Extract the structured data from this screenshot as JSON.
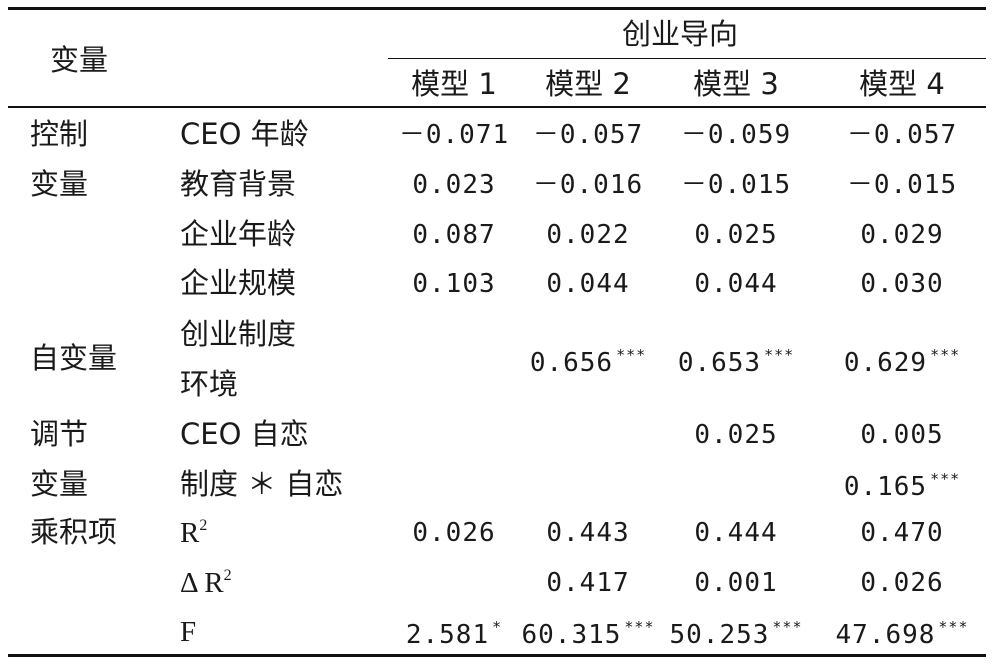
{
  "header": {
    "variable": "变量",
    "group": "创业导向",
    "models": [
      "模型 1",
      "模型 2",
      "模型 3",
      "模型 4"
    ]
  },
  "groups": {
    "control_1": "控制",
    "control_2": "变量",
    "independent": "自变量",
    "moderator_1": "调节",
    "moderator_2": "变量",
    "interaction": "乘积项"
  },
  "rows": [
    {
      "label": "CEO 年龄",
      "values": [
        "－0.071",
        "－0.057",
        "－0.059",
        "－0.057"
      ],
      "stars": [
        "",
        "",
        "",
        ""
      ]
    },
    {
      "label": "教育背景",
      "values": [
        "0.023",
        "－0.016",
        "－0.015",
        "－0.015"
      ],
      "stars": [
        "",
        "",
        "",
        ""
      ]
    },
    {
      "label": "企业年龄",
      "values": [
        "0.087",
        "0.022",
        "0.025",
        "0.029"
      ],
      "stars": [
        "",
        "",
        "",
        ""
      ]
    },
    {
      "label": "企业规模",
      "values": [
        "0.103",
        "0.044",
        "0.044",
        "0.030"
      ],
      "stars": [
        "",
        "",
        "",
        ""
      ]
    },
    {
      "label": "创业制度",
      "label_line2": "环境",
      "values": [
        "",
        "0.656",
        "0.653",
        "0.629"
      ],
      "stars": [
        "",
        "***",
        "***",
        "***"
      ]
    },
    {
      "label": "CEO 自恋",
      "values": [
        "",
        "",
        "0.025",
        "0.005"
      ],
      "stars": [
        "",
        "",
        "",
        ""
      ]
    },
    {
      "label": "制度 ＊ 自恋",
      "values": [
        "",
        "",
        "",
        "0.165"
      ],
      "stars": [
        "",
        "",
        "",
        "***"
      ]
    },
    {
      "label": "R",
      "label_sup": "2",
      "values": [
        "0.026",
        "0.443",
        "0.444",
        "0.470"
      ],
      "stars": [
        "",
        "",
        "",
        ""
      ]
    },
    {
      "label": "Δ R",
      "label_sup": "2",
      "values": [
        "",
        "0.417",
        "0.001",
        "0.026"
      ],
      "stars": [
        "",
        "",
        "",
        ""
      ]
    },
    {
      "label": "F",
      "values": [
        "2.581",
        "60.315",
        "50.253",
        "47.698"
      ],
      "stars": [
        "*",
        "***",
        "***",
        "***"
      ]
    }
  ]
}
